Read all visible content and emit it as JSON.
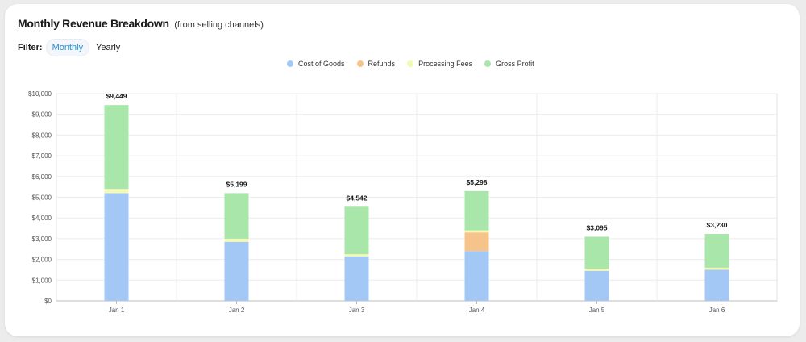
{
  "header": {
    "title": "Monthly Revenue Breakdown",
    "subtitle": "(from selling channels)"
  },
  "filter": {
    "label": "Filter:",
    "options": [
      {
        "label": "Monthly",
        "active": true
      },
      {
        "label": "Yearly",
        "active": false
      }
    ]
  },
  "chart_data": {
    "type": "bar",
    "stacked": true,
    "categories": [
      "Jan 1",
      "Jan 2",
      "Jan 3",
      "Jan 4",
      "Jan 5",
      "Jan 6"
    ],
    "series": [
      {
        "name": "Cost of Goods",
        "color": "#a3c8f5",
        "values": [
          5200,
          2850,
          2150,
          2400,
          1450,
          1500
        ]
      },
      {
        "name": "Refunds",
        "color": "#f6c48a",
        "values": [
          0,
          0,
          0,
          900,
          0,
          0
        ]
      },
      {
        "name": "Processing Fees",
        "color": "#f4f9b4",
        "values": [
          200,
          150,
          100,
          100,
          100,
          100
        ]
      },
      {
        "name": "Gross Profit",
        "color": "#a8e6a9",
        "values": [
          4049,
          2199,
          2292,
          1898,
          1545,
          1630
        ]
      }
    ],
    "totals": [
      "$9,449",
      "$5,199",
      "$4,542",
      "$5,298",
      "$3,095",
      "$3,230"
    ],
    "yticks": [
      "$0",
      "$1,000",
      "$2,000",
      "$3,000",
      "$4,000",
      "$5,000",
      "$6,000",
      "$7,000",
      "$8,000",
      "$9,000",
      "$10,000"
    ],
    "ylim": [
      0,
      10000
    ],
    "legend_position": "top-center",
    "grid": true
  }
}
